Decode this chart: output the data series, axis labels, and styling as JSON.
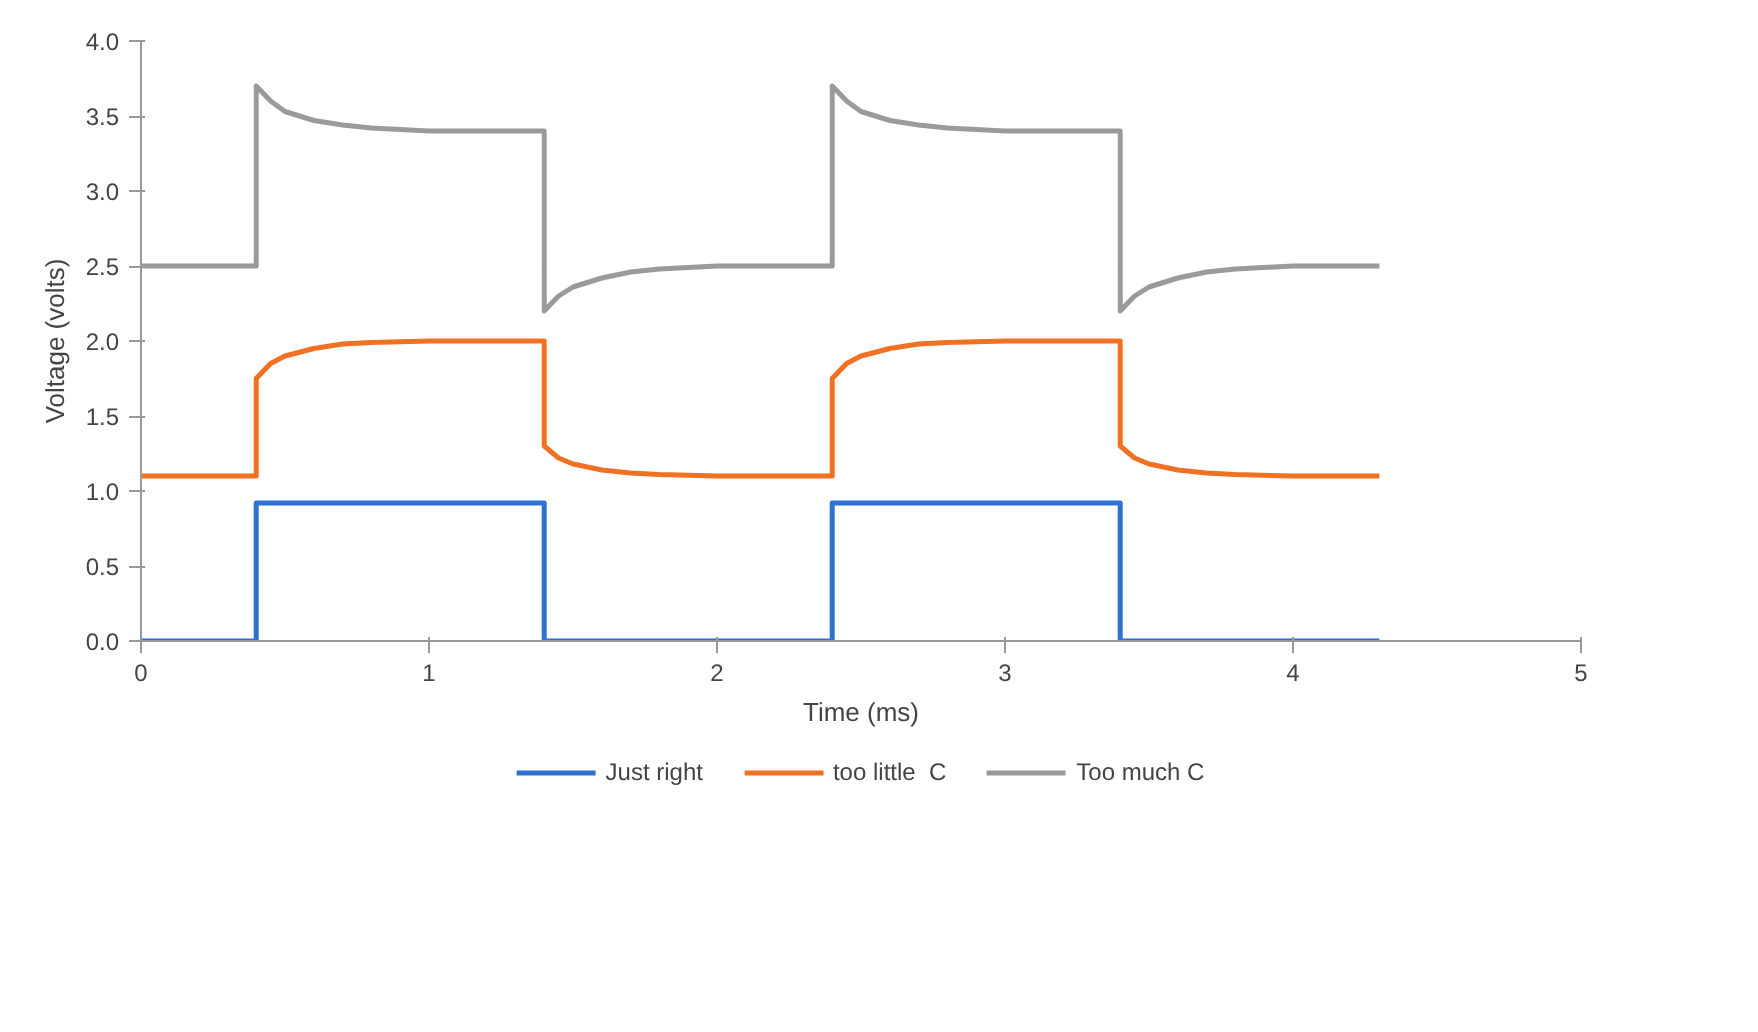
{
  "chart_data": {
    "type": "line",
    "xlabel": "Time (ms)",
    "ylabel": "Voltage (volts)",
    "xlim": [
      0,
      5
    ],
    "xticks": [
      0,
      1,
      2,
      3,
      4,
      5
    ],
    "ylim": [
      0,
      4
    ],
    "yticks": [
      {
        "value": 0,
        "label": "0.0"
      },
      {
        "value": 0.5,
        "label": "0.5"
      },
      {
        "value": 1,
        "label": "1.0"
      },
      {
        "value": 1.5,
        "label": "1.5"
      },
      {
        "value": 2,
        "label": "2.0"
      },
      {
        "value": 2.5,
        "label": "2.5"
      },
      {
        "value": 3,
        "label": "3.0"
      },
      {
        "value": 3.5,
        "label": "3.5"
      },
      {
        "value": 4,
        "label": "4.0"
      }
    ],
    "grid": false,
    "legend": "bottom",
    "marker": "none",
    "line_style": "solid",
    "series": [
      {
        "name": "Just right",
        "color": "#2e6fd4",
        "x": [
          0,
          0.4,
          0.4,
          1.4,
          1.4,
          2.4,
          2.4,
          3.4,
          3.4,
          4.3
        ],
        "values": [
          0,
          0,
          0.92,
          0.92,
          0,
          0,
          0.92,
          0.92,
          0,
          0
        ]
      },
      {
        "name": "too little  C",
        "color": "#f07122",
        "x": [
          0,
          0.4,
          0.4,
          0.45,
          0.5,
          0.6,
          0.7,
          0.8,
          1.0,
          1.4,
          1.4,
          1.45,
          1.5,
          1.6,
          1.7,
          1.8,
          2.0,
          2.4,
          2.4,
          2.45,
          2.5,
          2.6,
          2.7,
          2.8,
          3.0,
          3.4,
          3.4,
          3.45,
          3.5,
          3.6,
          3.7,
          3.8,
          4.0,
          4.3
        ],
        "values": [
          1.1,
          1.1,
          1.75,
          1.85,
          1.9,
          1.95,
          1.98,
          1.99,
          2.0,
          2.0,
          1.3,
          1.22,
          1.18,
          1.14,
          1.12,
          1.11,
          1.1,
          1.1,
          1.75,
          1.85,
          1.9,
          1.95,
          1.98,
          1.99,
          2.0,
          2.0,
          1.3,
          1.22,
          1.18,
          1.14,
          1.12,
          1.11,
          1.1,
          1.1
        ]
      },
      {
        "name": "Too much C",
        "color": "#9a9a9a",
        "x": [
          0,
          0.4,
          0.4,
          0.45,
          0.5,
          0.6,
          0.7,
          0.8,
          1.0,
          1.4,
          1.4,
          1.45,
          1.5,
          1.6,
          1.7,
          1.8,
          2.0,
          2.4,
          2.4,
          2.45,
          2.5,
          2.6,
          2.7,
          2.8,
          3.0,
          3.4,
          3.4,
          3.45,
          3.5,
          3.6,
          3.7,
          3.8,
          4.0,
          4.3
        ],
        "values": [
          2.5,
          2.5,
          3.7,
          3.6,
          3.53,
          3.47,
          3.44,
          3.42,
          3.4,
          3.4,
          2.2,
          2.3,
          2.36,
          2.42,
          2.46,
          2.48,
          2.5,
          2.5,
          3.7,
          3.6,
          3.53,
          3.47,
          3.44,
          3.42,
          3.4,
          3.4,
          2.2,
          2.3,
          2.36,
          2.42,
          2.46,
          2.48,
          2.5,
          2.5
        ]
      }
    ]
  }
}
